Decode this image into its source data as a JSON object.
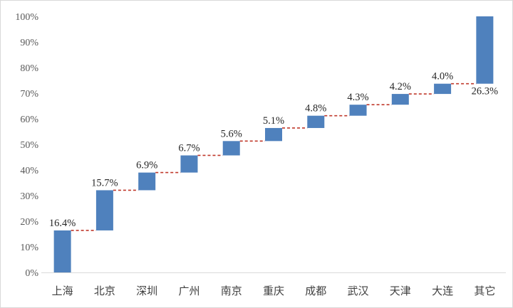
{
  "chart_data": {
    "type": "bar",
    "subtype": "waterfall",
    "categories": [
      "上海",
      "北京",
      "深圳",
      "广州",
      "南京",
      "重庆",
      "成都",
      "武汉",
      "天津",
      "大连",
      "其它"
    ],
    "values": [
      16.4,
      15.7,
      6.9,
      6.7,
      5.6,
      5.1,
      4.8,
      4.3,
      4.2,
      4.0,
      26.3
    ],
    "data_labels": [
      "16.4%",
      "15.7%",
      "6.9%",
      "6.7%",
      "5.6%",
      "5.1%",
      "4.8%",
      "4.3%",
      "4.2%",
      "4.0%",
      "26.3%"
    ],
    "y_ticks": [
      "0%",
      "10%",
      "20%",
      "30%",
      "40%",
      "50%",
      "60%",
      "70%",
      "80%",
      "90%",
      "100%"
    ],
    "ylim": [
      0,
      100
    ],
    "grid": false,
    "legend": "none",
    "colors": {
      "bar": "#4f81bd",
      "connector": "#c0392b",
      "axis": "#d9d9d9"
    }
  }
}
